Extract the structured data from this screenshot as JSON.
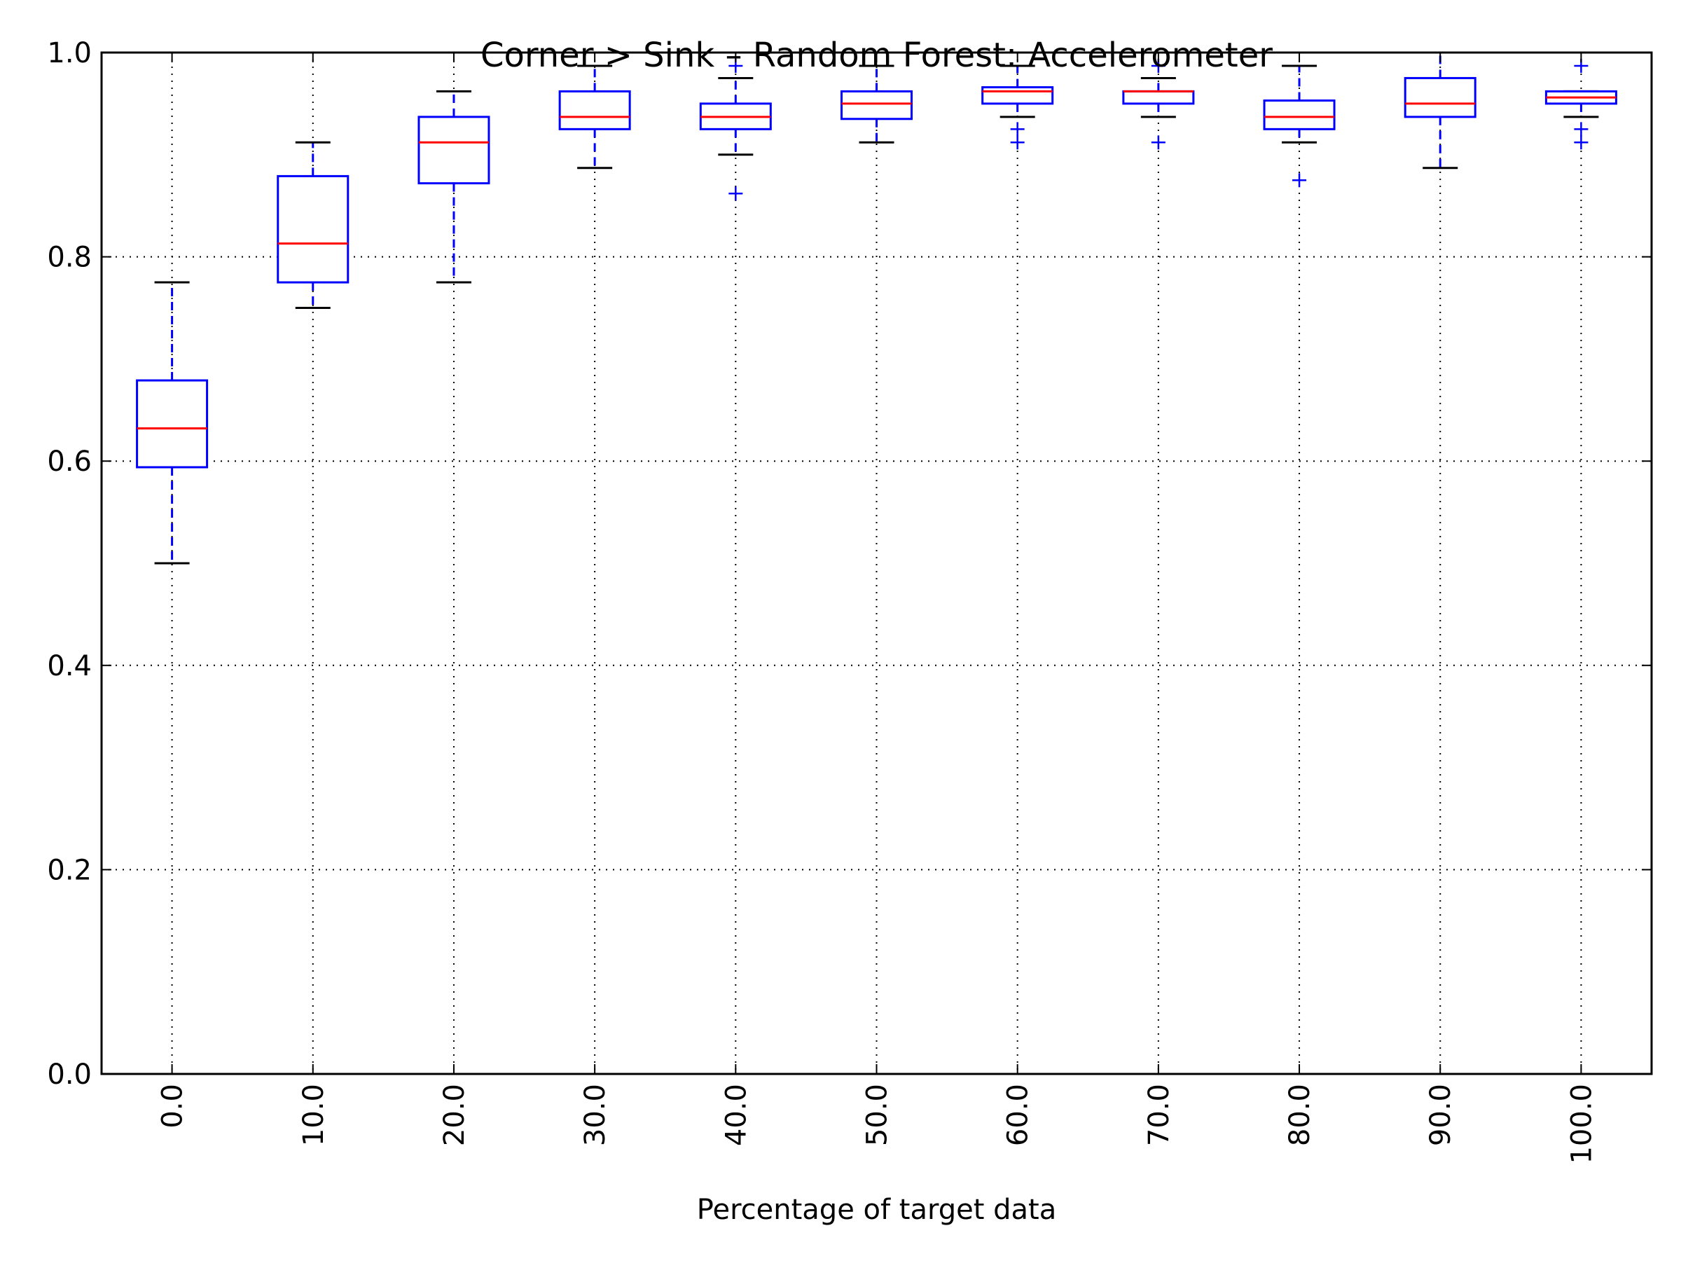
{
  "chart_data": {
    "type": "boxplot",
    "title": "Corner > Sink – Random Forest: Accelerometer",
    "xlabel": "Percentage of target data",
    "ylabel": "",
    "ylim": [
      0.0,
      1.0
    ],
    "yticks": [
      "0.0",
      "0.2",
      "0.4",
      "0.6",
      "0.8",
      "1.0"
    ],
    "grid": true,
    "categories": [
      "0.0",
      "10.0",
      "20.0",
      "30.0",
      "40.0",
      "50.0",
      "60.0",
      "70.0",
      "80.0",
      "90.0",
      "100.0"
    ],
    "boxes": [
      {
        "whisker_low": 0.5,
        "q1": 0.594,
        "median": 0.632,
        "q3": 0.679,
        "whisker_high": 0.775,
        "outliers": []
      },
      {
        "whisker_low": 0.75,
        "q1": 0.775,
        "median": 0.813,
        "q3": 0.879,
        "whisker_high": 0.912,
        "outliers": []
      },
      {
        "whisker_low": 0.775,
        "q1": 0.872,
        "median": 0.912,
        "q3": 0.937,
        "whisker_high": 0.962,
        "outliers": []
      },
      {
        "whisker_low": 0.887,
        "q1": 0.925,
        "median": 0.937,
        "q3": 0.962,
        "whisker_high": 0.987,
        "outliers": []
      },
      {
        "whisker_low": 0.9,
        "q1": 0.925,
        "median": 0.937,
        "q3": 0.95,
        "whisker_high": 0.975,
        "outliers": [
          0.862,
          0.987
        ]
      },
      {
        "whisker_low": 0.912,
        "q1": 0.935,
        "median": 0.95,
        "q3": 0.962,
        "whisker_high": 0.987,
        "outliers": []
      },
      {
        "whisker_low": 0.937,
        "q1": 0.95,
        "median": 0.962,
        "q3": 0.966,
        "whisker_high": 0.987,
        "outliers": [
          0.912,
          0.925
        ]
      },
      {
        "whisker_low": 0.937,
        "q1": 0.95,
        "median": 0.962,
        "q3": 0.962,
        "whisker_high": 0.975,
        "outliers": [
          0.912,
          0.987
        ]
      },
      {
        "whisker_low": 0.912,
        "q1": 0.925,
        "median": 0.937,
        "q3": 0.953,
        "whisker_high": 0.987,
        "outliers": [
          0.875
        ]
      },
      {
        "whisker_low": 0.887,
        "q1": 0.937,
        "median": 0.95,
        "q3": 0.975,
        "whisker_high": 1.0,
        "outliers": []
      },
      {
        "whisker_low": 0.937,
        "q1": 0.95,
        "median": 0.956,
        "q3": 0.962,
        "whisker_high": 0.962,
        "outliers": [
          0.912,
          0.925,
          0.987
        ]
      }
    ],
    "colors": {
      "box": "#0000ff",
      "median": "#ff0000",
      "whisker": "#0000ff",
      "cap": "#000000",
      "outlier": "#0000ff",
      "axis": "#000000",
      "grid": "#000000"
    }
  }
}
